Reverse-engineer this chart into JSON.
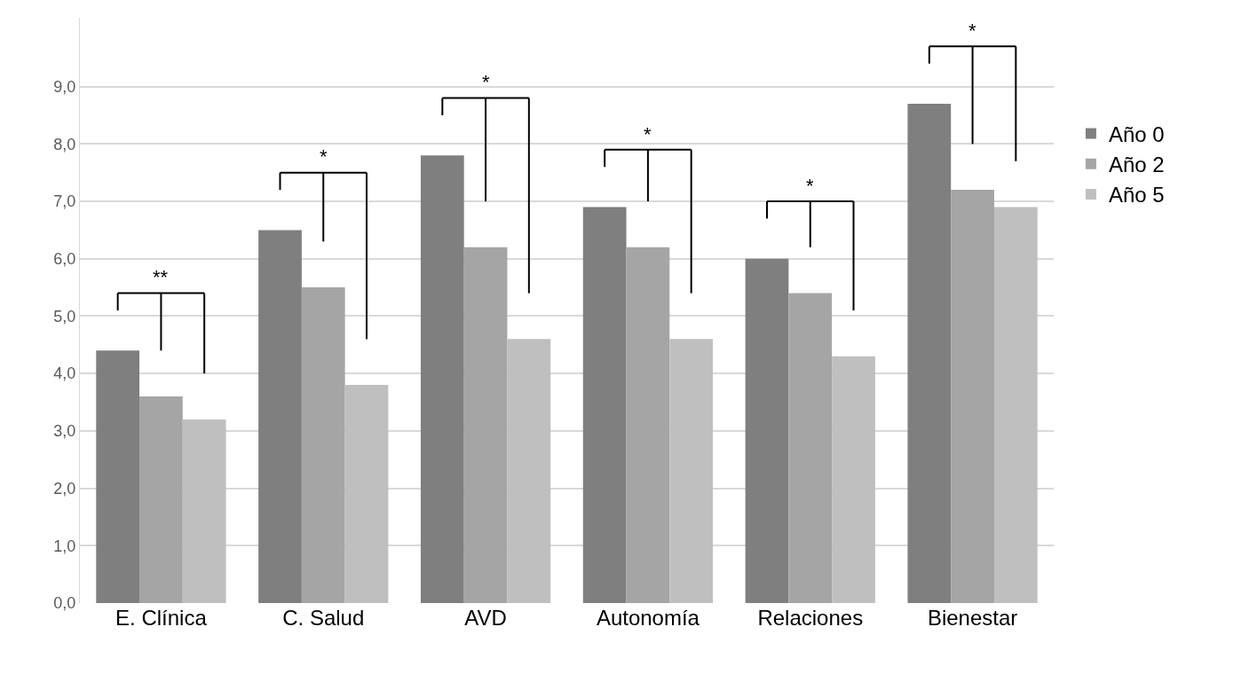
{
  "chart_data": {
    "type": "bar",
    "categories": [
      "E. Clínica",
      "C. Salud",
      "AVD",
      "Autonomía",
      "Relaciones",
      "Bienestar"
    ],
    "series": [
      {
        "name": "Año 0",
        "color": "#7f7f7f",
        "values": [
          4.4,
          6.5,
          7.8,
          6.9,
          6.0,
          8.7
        ]
      },
      {
        "name": "Año 2",
        "color": "#a5a5a5",
        "values": [
          3.6,
          5.5,
          6.2,
          6.2,
          5.4,
          7.2
        ]
      },
      {
        "name": "Año 5",
        "color": "#bfbfbf",
        "values": [
          3.2,
          3.8,
          4.6,
          4.6,
          4.3,
          6.9
        ]
      }
    ],
    "ylim": [
      0,
      10.2
    ],
    "yticks": [
      {
        "value": 0,
        "label": "0,0"
      },
      {
        "value": 1,
        "label": "1,0"
      },
      {
        "value": 2,
        "label": "2,0"
      },
      {
        "value": 3,
        "label": "3,0"
      },
      {
        "value": 4,
        "label": "4,0"
      },
      {
        "value": 5,
        "label": "5,0"
      },
      {
        "value": 6,
        "label": "6,0"
      },
      {
        "value": 7,
        "label": "7,0"
      },
      {
        "value": 8,
        "label": "8,0"
      },
      {
        "value": 9,
        "label": "9,0"
      }
    ],
    "grid": "y",
    "legend": "right",
    "annotations": [
      "**",
      "*",
      "*",
      "*",
      "*",
      "*"
    ]
  }
}
